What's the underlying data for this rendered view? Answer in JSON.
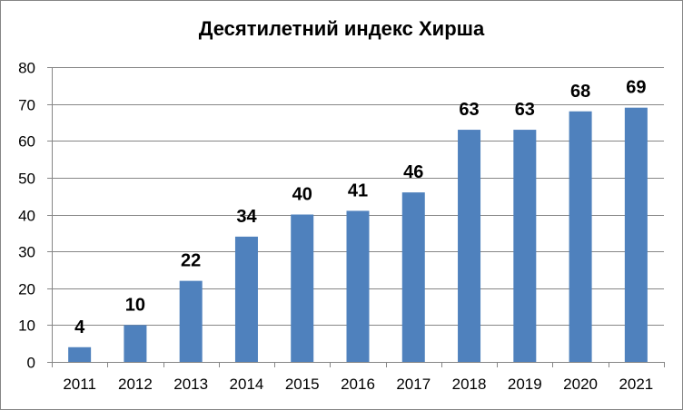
{
  "chart_data": {
    "type": "bar",
    "title": "Десятилетний индекс Хирша",
    "xlabel": "",
    "ylabel": "",
    "categories": [
      "2011",
      "2012",
      "2013",
      "2014",
      "2015",
      "2016",
      "2017",
      "2018",
      "2019",
      "2020",
      "2021"
    ],
    "values": [
      4,
      10,
      22,
      34,
      40,
      41,
      46,
      63,
      63,
      68,
      69
    ],
    "data_labels": [
      "4",
      "10",
      "22",
      "34",
      "40",
      "41",
      "46",
      "63",
      "63",
      "68",
      "69"
    ],
    "ylim": [
      0,
      80
    ],
    "yticks": [
      0,
      10,
      20,
      30,
      40,
      50,
      60,
      70,
      80
    ],
    "grid": true,
    "legend": "none",
    "bar_color": "#4F81BD",
    "grid_color": "#868686"
  }
}
